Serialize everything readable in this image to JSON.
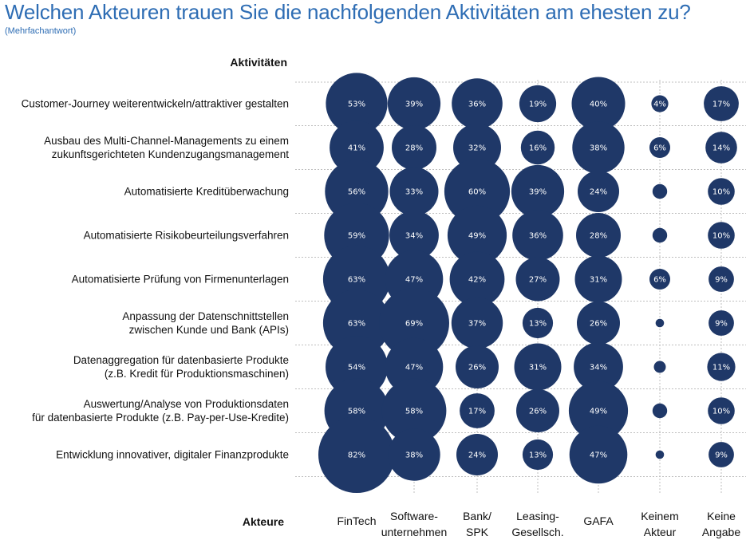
{
  "header": {
    "title": "Welchen Akteuren trauen Sie die nachfolgenden Aktivitäten am ehesten zu?",
    "subtitle": "(Mehrfachantwort)"
  },
  "chart_data": {
    "type": "bubble",
    "row_axis_label": "Aktivitäten",
    "col_axis_label": "Akteure",
    "bubble_color": "#1f3868",
    "label_color": "#ffffff",
    "rows": [
      "Customer-Journey weiterentwickeln/attraktiver gestalten",
      "Ausbau des Multi-Channel-Managements zu einem\nzukunftsgerichteten Kundenzugangsmanagement",
      "Automatisierte Kreditüberwachung",
      "Automatisierte Risikobeurteilungsverfahren",
      "Automatisierte Prüfung von Firmenunterlagen",
      "Anpassung der Datenschnittstellen\nzwischen Kunde und Bank (APIs)",
      "Datenaggregation für datenbasierte Produkte\n(z.B. Kredit für Produktionsmaschinen)",
      "Auswertung/Analyse von Produktionsdaten\nfür datenbasierte Produkte (z.B. Pay-per-Use-Kredite)",
      "Entwicklung innovativer, digitaler Finanzprodukte"
    ],
    "columns": [
      "FinTech",
      "Software-\nunternehmen",
      "Bank/\nSPK",
      "Leasing-\nGesellsch.",
      "GAFA",
      "Keinem\nAkteur",
      "Keine\nAngabe"
    ],
    "values": [
      [
        53,
        39,
        36,
        19,
        40,
        4,
        17
      ],
      [
        41,
        28,
        32,
        16,
        38,
        6,
        14
      ],
      [
        56,
        33,
        60,
        39,
        24,
        3,
        10
      ],
      [
        59,
        34,
        49,
        36,
        28,
        3,
        10
      ],
      [
        63,
        47,
        42,
        27,
        31,
        6,
        9
      ],
      [
        63,
        69,
        37,
        13,
        26,
        1,
        9
      ],
      [
        54,
        47,
        26,
        31,
        34,
        2,
        11
      ],
      [
        58,
        58,
        17,
        26,
        49,
        3,
        10
      ],
      [
        82,
        38,
        24,
        13,
        47,
        1,
        9
      ]
    ],
    "labels": [
      [
        "53%",
        "39%",
        "36%",
        "19%",
        "40%",
        "4%",
        "17%"
      ],
      [
        "41%",
        "28%",
        "32%",
        "16%",
        "38%",
        "6%",
        "14%"
      ],
      [
        "56%",
        "33%",
        "60%",
        "39%",
        "24%",
        "",
        "10%"
      ],
      [
        "59%",
        "34%",
        "49%",
        "36%",
        "28%",
        "",
        "10%"
      ],
      [
        "63%",
        "47%",
        "42%",
        "27%",
        "31%",
        "6%",
        "9%"
      ],
      [
        "63%",
        "69%",
        "37%",
        "13%",
        "26%",
        "",
        "9%"
      ],
      [
        "54%",
        "47%",
        "26%",
        "31%",
        "34%",
        "",
        "11%"
      ],
      [
        "58%",
        "58%",
        "17%",
        "26%",
        "49%",
        "",
        "10%"
      ],
      [
        "82%",
        "38%",
        "24%",
        "13%",
        "47%",
        "",
        "9%"
      ]
    ]
  }
}
